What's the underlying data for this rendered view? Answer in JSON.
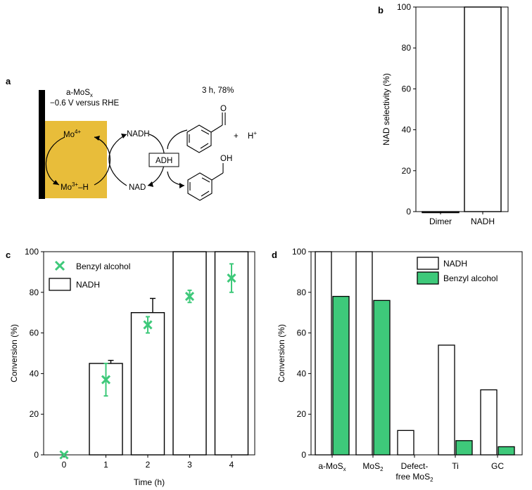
{
  "panels": {
    "a": {
      "label": "a",
      "electrode_name": "a-MoS",
      "electrode_sub": "x",
      "potential": "−0.6 V versus RHE",
      "mo4": "Mo",
      "mo4_sup": "4+",
      "mo3": "Mo",
      "mo3_sup": "3+",
      "mo3_tail": "–H",
      "nadh": "NADH",
      "nad": "NAD",
      "adh": "ADH",
      "conditions": "3 h, 78%",
      "plus": "+",
      "h": "H",
      "h_sup": "+",
      "aldehyde_o": "O",
      "alcohol_oh": "OH",
      "colors": {
        "electrode": "#e8bd3a",
        "bar": "#000000"
      }
    },
    "b": {
      "label": "b"
    },
    "c": {
      "label": "c"
    },
    "d": {
      "label": "d"
    }
  },
  "chart_data": [
    {
      "id": "b",
      "type": "bar",
      "categories": [
        "Dimer",
        "NADH"
      ],
      "values": [
        0,
        100
      ],
      "ylabel": "NAD selectivity (%)",
      "xlabel": "",
      "ylim": [
        0,
        100
      ],
      "yticks": [
        0,
        20,
        40,
        60,
        80,
        100
      ],
      "grid": false
    },
    {
      "id": "c",
      "type": "bar",
      "categories": [
        "0",
        "1",
        "2",
        "3",
        "4"
      ],
      "xlabel": "Time (h)",
      "ylabel": "Conversion (%)",
      "ylim": [
        0,
        100
      ],
      "yticks": [
        0,
        20,
        40,
        60,
        80,
        100
      ],
      "grid": false,
      "legend": "top-left",
      "series": [
        {
          "name": "NADH",
          "kind": "bar",
          "values": [
            null,
            45,
            70,
            100,
            100
          ],
          "err": [
            null,
            1.5,
            7,
            null,
            null
          ],
          "color": "#ffffff"
        },
        {
          "name": "Benzyl alcohol",
          "kind": "scatter",
          "values": [
            0,
            37,
            64,
            78,
            87
          ],
          "err": [
            null,
            8,
            4,
            3,
            7
          ],
          "color": "#3ec97a"
        }
      ]
    },
    {
      "id": "d",
      "type": "bar",
      "categories": [
        [
          "a-MoS",
          "x",
          ""
        ],
        [
          "MoS",
          "2",
          ""
        ],
        [
          "Defect-",
          "",
          "",
          "free MoS",
          "2"
        ],
        [
          "Ti",
          "",
          ""
        ],
        [
          "GC",
          "",
          ""
        ]
      ],
      "xlabel": "",
      "ylabel": "Conversion (%)",
      "ylim": [
        0,
        100
      ],
      "yticks": [
        0,
        20,
        40,
        60,
        80,
        100
      ],
      "grid": false,
      "legend": "top-right",
      "series": [
        {
          "name": "NADH",
          "values": [
            100,
            100,
            12,
            54,
            32
          ],
          "color": "#ffffff"
        },
        {
          "name": "Benzyl alcohol",
          "values": [
            78,
            76,
            0,
            7,
            4
          ],
          "color": "#3ec97a"
        }
      ]
    }
  ]
}
